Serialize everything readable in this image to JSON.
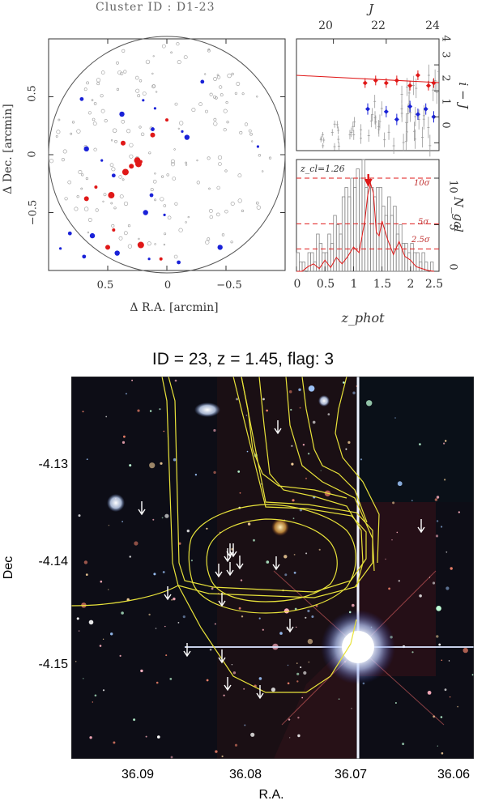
{
  "top_figure": {
    "cluster_title": "Cluster ID : D1-23",
    "sky_map": {
      "xlabel": "Δ R.A. [arcmin]",
      "ylabel": "Δ Dec. [arcmin]",
      "x_ticks": [
        "0.5",
        "0",
        "−0.5"
      ],
      "y_ticks": [
        "0.5",
        "0",
        "−0.5"
      ]
    },
    "cmd": {
      "top_axis_label": "J",
      "top_ticks": [
        "20",
        "22",
        "24"
      ],
      "right_label": "i − J",
      "right_ticks": [
        "0",
        "1",
        "2",
        "3",
        "4"
      ]
    },
    "photoz_hist": {
      "zcl_label": "z_cl=1.26",
      "right_label": "N_gal",
      "right_ticks": [
        "0",
        "5",
        "10"
      ],
      "x_ticks": [
        "0",
        "0.5",
        "1",
        "1.5",
        "2",
        "2.5"
      ],
      "xlabel": "z_phot",
      "sigma_labels": [
        "10σ",
        "5σ",
        "2.5σ"
      ]
    }
  },
  "bottom_figure": {
    "title": "ID = 23, z = 1.45, flag: 3",
    "xlabel": "R.A.",
    "ylabel": "Dec",
    "x_ticks": [
      "36.09",
      "36.08",
      "36.07",
      "36.06"
    ],
    "y_ticks": [
      "-4.13",
      "-4.14",
      "-4.15"
    ]
  },
  "colors": {
    "red": "#e01818",
    "blue": "#1a22d8",
    "grey": "#9a9a9a",
    "contour": "#e8e23a",
    "arrow": "#ffffff"
  },
  "chart_data": [
    {
      "type": "scatter",
      "xlabel": "Δ R.A. [arcmin]",
      "ylabel": "Δ Dec. [arcmin]",
      "xlim": [
        1.0,
        -1.0
      ],
      "ylim": [
        -1.0,
        1.0
      ],
      "series": [
        {
          "values": [
            [
              0.0,
              0.3
            ],
            [
              0.37,
              0.1
            ],
            [
              0.25,
              -0.05
            ],
            [
              0.22,
              -0.06
            ],
            [
              0.3,
              -0.1
            ],
            [
              0.35,
              -0.15
            ],
            [
              0.6,
              -0.28
            ],
            [
              0.68,
              -0.38
            ],
            [
              0.47,
              -0.35
            ],
            [
              0.45,
              -0.65
            ],
            [
              0.5,
              -0.8
            ],
            [
              0.22,
              -0.78
            ],
            [
              0.05,
              -0.9
            ],
            [
              0.12,
              0.17
            ],
            [
              0.24,
              -0.08
            ]
          ]
        },
        {
          "values": [
            [
              0.2,
              0.47
            ],
            [
              0.72,
              0.48
            ],
            [
              0.38,
              0.35
            ],
            [
              0.1,
              0.4
            ],
            [
              0.12,
              0.22
            ],
            [
              0.68,
              0.05
            ],
            [
              0.55,
              -0.05
            ],
            [
              0.45,
              -0.18
            ],
            [
              -0.17,
              0.15
            ],
            [
              -0.77,
              0.07
            ],
            [
              0.13,
              -0.35
            ],
            [
              0.18,
              -0.5
            ],
            [
              0.02,
              -0.52
            ],
            [
              0.82,
              -0.68
            ],
            [
              0.63,
              -0.7
            ],
            [
              0.9,
              -0.81
            ],
            [
              0.7,
              -0.88
            ],
            [
              0.42,
              -0.85
            ],
            [
              0.15,
              -0.9
            ],
            [
              -0.1,
              -0.93
            ],
            [
              -0.45,
              -0.8
            ],
            [
              -0.13,
              0.2
            ],
            [
              -0.3,
              0.63
            ]
          ]
        }
      ]
    },
    {
      "type": "scatter",
      "xlabel": "J",
      "ylabel": "i − J",
      "xlim": [
        18.6,
        24.0
      ],
      "ylim": [
        -0.3,
        4.0
      ],
      "series": [
        {
          "values": [
            [
              21.2,
              2.3
            ],
            [
              21.6,
              2.4
            ],
            [
              22.0,
              2.3
            ],
            [
              22.4,
              2.4
            ],
            [
              22.9,
              2.2
            ],
            [
              23.2,
              2.6
            ],
            [
              23.6,
              2.2
            ],
            [
              23.8,
              2.3
            ]
          ]
        },
        {
          "values": [
            [
              21.3,
              1.3
            ],
            [
              22.0,
              1.2
            ],
            [
              22.4,
              0.9
            ],
            [
              22.9,
              1.4
            ],
            [
              23.2,
              1.1
            ],
            [
              23.5,
              1.3
            ],
            [
              23.8,
              1.0
            ]
          ]
        }
      ]
    },
    {
      "type": "bar",
      "xlabel": "z_phot",
      "ylabel": "N_gal",
      "xlim": [
        0.0,
        2.5
      ],
      "ylim": [
        0,
        12
      ],
      "bin_width": 0.05,
      "values": [
        2,
        1,
        1,
        0,
        2,
        2,
        1,
        4,
        3,
        2,
        2,
        4,
        3,
        6,
        5,
        4,
        8,
        9,
        8,
        10,
        9,
        11,
        10,
        12,
        9,
        10,
        9,
        8,
        9,
        9,
        7,
        6,
        8,
        6,
        7,
        4,
        5,
        3,
        3,
        2,
        3,
        2,
        2,
        1,
        2,
        1,
        0,
        1,
        0,
        0
      ],
      "line_x": [
        0.0,
        0.1,
        0.2,
        0.3,
        0.4,
        0.5,
        0.6,
        0.7,
        0.8,
        0.9,
        1.0,
        1.1,
        1.2,
        1.25,
        1.3,
        1.35,
        1.4,
        1.45,
        1.5,
        1.6,
        1.7,
        1.8,
        1.9,
        2.0,
        2.1,
        2.2,
        2.3,
        2.4,
        2.5
      ],
      "line_y": [
        0,
        0,
        0.5,
        0.8,
        0.3,
        1.2,
        0.4,
        1.5,
        0.8,
        1.6,
        2.6,
        2.0,
        5.5,
        8.2,
        9.4,
        8.4,
        4.2,
        3.8,
        5.4,
        3.4,
        1.8,
        3.2,
        1.6,
        1.2,
        0.5,
        0.3,
        0.1,
        0,
        0
      ],
      "hlines": [
        2.4,
        5.1,
        10.0
      ],
      "arrow_at": 1.26
    }
  ]
}
